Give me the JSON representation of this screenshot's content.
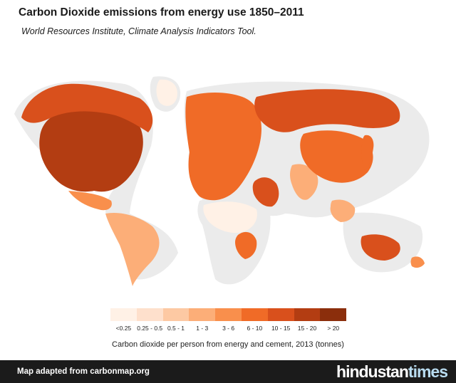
{
  "header": {
    "title": "Carbon Dioxide emissions from energy use 1850–2011",
    "subtitle": "World Resources Institute, Climate Analysis Indicators Tool."
  },
  "colors": {
    "no_data": "#ebebeb",
    "scale": [
      "#fff1e6",
      "#fee0cc",
      "#fdc9a3",
      "#fcae78",
      "#f98f4c",
      "#f06b27",
      "#d9501c",
      "#b33d12",
      "#8b2e0c"
    ]
  },
  "legend": {
    "items": [
      {
        "label": "<0.25",
        "color": "#fff1e6"
      },
      {
        "label": "0.25 - 0.5",
        "color": "#fee0cc"
      },
      {
        "label": "0.5 - 1",
        "color": "#fdc9a3"
      },
      {
        "label": "1 - 3",
        "color": "#fcae78"
      },
      {
        "label": "3 - 6",
        "color": "#f98f4c"
      },
      {
        "label": "6 - 10",
        "color": "#f06b27"
      },
      {
        "label": "10 - 15",
        "color": "#d9501c"
      },
      {
        "label": "15 - 20",
        "color": "#b33d12"
      },
      {
        "label": "> 20",
        "color": "#8b2e0c"
      }
    ],
    "caption": "Carbon dioxide per person from energy and cement, 2013 (tonnes)"
  },
  "regions": [
    {
      "name": "north-america",
      "bin": 7
    },
    {
      "name": "canada-alaska",
      "bin": 6
    },
    {
      "name": "greenland",
      "bin": 0
    },
    {
      "name": "mexico",
      "bin": 4
    },
    {
      "name": "south-america",
      "bin": 3
    },
    {
      "name": "europe",
      "bin": 5
    },
    {
      "name": "russia",
      "bin": 6
    },
    {
      "name": "middle-east",
      "bin": 6
    },
    {
      "name": "africa",
      "bin": 0
    },
    {
      "name": "south-africa",
      "bin": 5
    },
    {
      "name": "india",
      "bin": 3
    },
    {
      "name": "china",
      "bin": 5
    },
    {
      "name": "japan",
      "bin": 5
    },
    {
      "name": "southeast-asia",
      "bin": 3
    },
    {
      "name": "australia",
      "bin": 6
    },
    {
      "name": "new-zealand",
      "bin": 4
    }
  ],
  "footer": {
    "credit": "Map adapted from carbonmap.org",
    "brand_part1": "hindustan",
    "brand_part2": "times"
  }
}
